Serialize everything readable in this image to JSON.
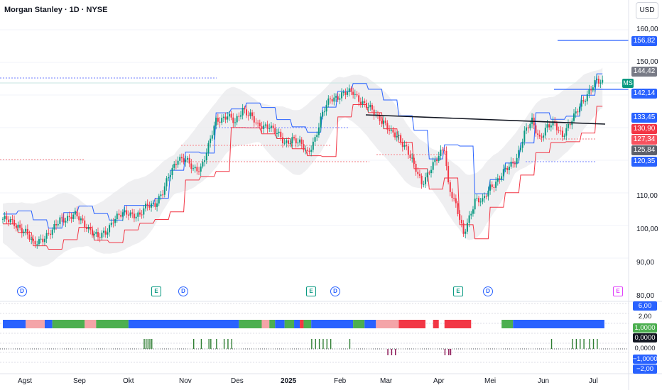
{
  "header": {
    "title": "Morgan Stanley · 1D · NYSE",
    "currency": "USD"
  },
  "symbol_tag": "MS",
  "price_axis": {
    "ticks": [
      "160,00",
      "150,00",
      "110,00",
      "100,00",
      "90,00",
      "80,00"
    ],
    "labels": [
      {
        "text": "156,82",
        "color": "#2962ff"
      },
      {
        "text": "144,42",
        "color": "#787b86"
      },
      {
        "text": "142,14",
        "color": "#2962ff"
      },
      {
        "text": "133,45",
        "color": "#2962ff"
      },
      {
        "text": "130,90",
        "color": "#f23645"
      },
      {
        "text": "127,34",
        "color": "#f7525f"
      },
      {
        "text": "125,84",
        "color": "#5d606b"
      },
      {
        "text": "120,35",
        "color": "#2962ff"
      }
    ]
  },
  "indicator_axis": {
    "labels": [
      {
        "text": "6,00",
        "bg": "#2962ff",
        "fg": "#ffffff"
      },
      {
        "text": "2,00",
        "bg": "#ffffff",
        "fg": "#131722"
      },
      {
        "text": "1,0000",
        "bg": "#4caf50",
        "fg": "#ffffff"
      },
      {
        "text": "0,0000",
        "bg": "#131722",
        "fg": "#ffffff"
      },
      {
        "text": "0,0000",
        "bg": "#ffffff",
        "fg": "#131722"
      },
      {
        "text": "−1,0000",
        "bg": "#2962ff",
        "fg": "#ffffff"
      },
      {
        "text": "−2,00",
        "bg": "#2962ff",
        "fg": "#ffffff"
      }
    ]
  },
  "time_axis": [
    {
      "text": "Agst",
      "bold": false
    },
    {
      "text": "Sep",
      "bold": false
    },
    {
      "text": "Okt",
      "bold": false
    },
    {
      "text": "Nov",
      "bold": false
    },
    {
      "text": "Des",
      "bold": false
    },
    {
      "text": "2025",
      "bold": true
    },
    {
      "text": "Feb",
      "bold": false
    },
    {
      "text": "Mar",
      "bold": false
    },
    {
      "text": "Apr",
      "bold": false
    },
    {
      "text": "Mei",
      "bold": false
    },
    {
      "text": "Jun",
      "bold": false
    },
    {
      "text": "Jul",
      "bold": false
    }
  ],
  "events": [
    {
      "type": "dividend",
      "glyph": "D"
    },
    {
      "type": "earnings",
      "glyph": "E"
    },
    {
      "type": "dividend",
      "glyph": "D"
    },
    {
      "type": "earnings",
      "glyph": "E"
    },
    {
      "type": "dividend",
      "glyph": "D"
    },
    {
      "type": "earnings",
      "glyph": "E"
    },
    {
      "type": "dividend",
      "glyph": "D"
    },
    {
      "type": "earnings-upcoming",
      "glyph": "E"
    }
  ],
  "colors": {
    "up": "#089981",
    "down": "#f23645",
    "upper_stop": "#2962ff",
    "lower_stop": "#f23645",
    "band": "#e9eaec",
    "trendline": "#131722",
    "hist_up": "#2e7d32",
    "hist_down": "#880e4f"
  },
  "chart_data": {
    "type": "candlestick",
    "symbol": "MS",
    "ylim": [
      80,
      162
    ],
    "price_path": [
      [
        0,
        102
      ],
      [
        8,
        100
      ],
      [
        12,
        98
      ],
      [
        16,
        94
      ],
      [
        20,
        96
      ],
      [
        26,
        98
      ],
      [
        30,
        102
      ],
      [
        38,
        103
      ],
      [
        44,
        100
      ],
      [
        50,
        96
      ],
      [
        54,
        98
      ],
      [
        58,
        102
      ],
      [
        66,
        104
      ],
      [
        72,
        103
      ],
      [
        76,
        106
      ],
      [
        80,
        107
      ],
      [
        84,
        110
      ],
      [
        88,
        116
      ],
      [
        92,
        121
      ],
      [
        96,
        120
      ],
      [
        100,
        117
      ],
      [
        104,
        118
      ],
      [
        108,
        124
      ],
      [
        112,
        132
      ],
      [
        118,
        134
      ],
      [
        122,
        131
      ],
      [
        126,
        136
      ],
      [
        130,
        134
      ],
      [
        134,
        130
      ],
      [
        140,
        131
      ],
      [
        144,
        128
      ],
      [
        148,
        125
      ],
      [
        152,
        127
      ],
      [
        156,
        125
      ],
      [
        160,
        122
      ],
      [
        164,
        127
      ],
      [
        168,
        134
      ],
      [
        172,
        139
      ],
      [
        178,
        140
      ],
      [
        184,
        141
      ],
      [
        190,
        137
      ],
      [
        196,
        134
      ],
      [
        200,
        132
      ],
      [
        204,
        128
      ],
      [
        208,
        127
      ],
      [
        212,
        124
      ],
      [
        216,
        118
      ],
      [
        220,
        113
      ],
      [
        224,
        117
      ],
      [
        228,
        120
      ],
      [
        232,
        124
      ],
      [
        234,
        113
      ],
      [
        238,
        106
      ],
      [
        242,
        97
      ],
      [
        244,
        101
      ],
      [
        248,
        108
      ],
      [
        252,
        107
      ],
      [
        256,
        112
      ],
      [
        260,
        114
      ],
      [
        266,
        118
      ],
      [
        270,
        121
      ],
      [
        274,
        128
      ],
      [
        278,
        132
      ],
      [
        282,
        127
      ],
      [
        286,
        130
      ],
      [
        290,
        131
      ],
      [
        294,
        128
      ],
      [
        298,
        131
      ],
      [
        300,
        133
      ],
      [
        304,
        138
      ],
      [
        308,
        141
      ],
      [
        312,
        144
      ]
    ],
    "indicator_blocks": [
      {
        "start": 0,
        "end": 12,
        "color": "#2962ff"
      },
      {
        "start": 12,
        "end": 22,
        "color": "#f4a4a8"
      },
      {
        "start": 22,
        "end": 26,
        "color": "#2962ff"
      },
      {
        "start": 26,
        "end": 43,
        "color": "#4caf50"
      },
      {
        "start": 43,
        "end": 49,
        "color": "#f4a4a8"
      },
      {
        "start": 49,
        "end": 66,
        "color": "#4caf50"
      },
      {
        "start": 66,
        "end": 124,
        "color": "#2962ff"
      },
      {
        "start": 124,
        "end": 136,
        "color": "#4caf50"
      },
      {
        "start": 136,
        "end": 140,
        "color": "#f4a4a8"
      },
      {
        "start": 140,
        "end": 143,
        "color": "#4caf50"
      },
      {
        "start": 143,
        "end": 148,
        "color": "#2962ff"
      },
      {
        "start": 148,
        "end": 153,
        "color": "#4caf50"
      },
      {
        "start": 153,
        "end": 156,
        "color": "#2962ff"
      },
      {
        "start": 156,
        "end": 158,
        "color": "#f23645"
      },
      {
        "start": 158,
        "end": 162,
        "color": "#4caf50"
      },
      {
        "start": 162,
        "end": 184,
        "color": "#2962ff"
      },
      {
        "start": 184,
        "end": 190,
        "color": "#4caf50"
      },
      {
        "start": 190,
        "end": 196,
        "color": "#2962ff"
      },
      {
        "start": 196,
        "end": 208,
        "color": "#f4a4a8"
      },
      {
        "start": 208,
        "end": 222,
        "color": "#f23645"
      },
      {
        "start": 226,
        "end": 229,
        "color": "#f23645"
      },
      {
        "start": 232,
        "end": 246,
        "color": "#f23645"
      },
      {
        "start": 262,
        "end": 268,
        "color": "#4caf50"
      },
      {
        "start": 268,
        "end": 316,
        "color": "#2962ff"
      }
    ],
    "histogram_spikes": [
      {
        "i": 74,
        "dir": 1
      },
      {
        "i": 75,
        "dir": 1
      },
      {
        "i": 76,
        "dir": 1
      },
      {
        "i": 77,
        "dir": 1
      },
      {
        "i": 78,
        "dir": 1
      },
      {
        "i": 100,
        "dir": 1
      },
      {
        "i": 104,
        "dir": 1
      },
      {
        "i": 108,
        "dir": 1
      },
      {
        "i": 109,
        "dir": 1
      },
      {
        "i": 112,
        "dir": 1
      },
      {
        "i": 116,
        "dir": 1
      },
      {
        "i": 118,
        "dir": 1
      },
      {
        "i": 120,
        "dir": 1
      },
      {
        "i": 162,
        "dir": 1
      },
      {
        "i": 164,
        "dir": 1
      },
      {
        "i": 166,
        "dir": 1
      },
      {
        "i": 168,
        "dir": 1
      },
      {
        "i": 170,
        "dir": 1
      },
      {
        "i": 172,
        "dir": 1
      },
      {
        "i": 182,
        "dir": 1
      },
      {
        "i": 202,
        "dir": -1
      },
      {
        "i": 204,
        "dir": -1
      },
      {
        "i": 206,
        "dir": -1
      },
      {
        "i": 232,
        "dir": -1
      },
      {
        "i": 234,
        "dir": -1
      },
      {
        "i": 235,
        "dir": -1
      },
      {
        "i": 288,
        "dir": 1
      },
      {
        "i": 299,
        "dir": 1
      },
      {
        "i": 301,
        "dir": 1
      },
      {
        "i": 303,
        "dir": 1
      },
      {
        "i": 305,
        "dir": 1
      },
      {
        "i": 308,
        "dir": 1
      },
      {
        "i": 310,
        "dir": 1
      },
      {
        "i": 312,
        "dir": 1
      }
    ]
  }
}
